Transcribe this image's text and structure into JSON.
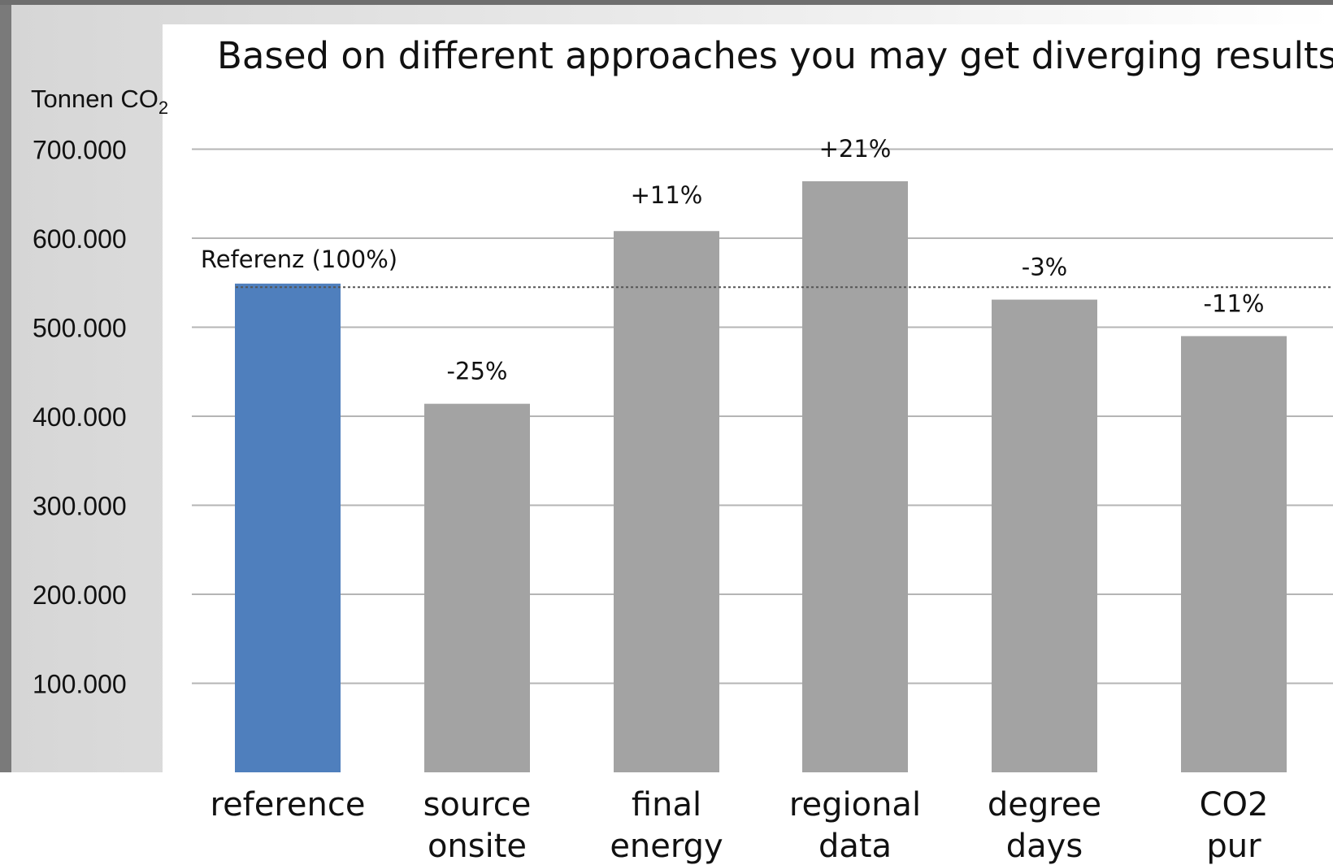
{
  "chart_data": {
    "type": "bar",
    "title": "Based on different approaches you may get diverging results",
    "ylabel": "Tonnen CO",
    "ylabel_subscript": "2",
    "ylim": [
      0,
      700000
    ],
    "yticks": [
      100000,
      200000,
      300000,
      400000,
      500000,
      600000,
      700000
    ],
    "ytick_labels": [
      "100.000",
      "200.000",
      "300.000",
      "400.000",
      "500.000",
      "600.000",
      "700.000"
    ],
    "grid": true,
    "categories": [
      [
        "reference"
      ],
      [
        "source",
        "onsite"
      ],
      [
        "final",
        "energy"
      ],
      [
        "regional",
        "data"
      ],
      [
        "degree",
        "days"
      ],
      [
        "CO2",
        "pur"
      ]
    ],
    "values": [
      549000,
      414000,
      608000,
      664000,
      531000,
      490000
    ],
    "data_labels": [
      "Referenz (100%)",
      "-25%",
      "+11%",
      "+21%",
      "-3%",
      "-11%"
    ],
    "reference_line": 545000,
    "colors": {
      "highlight": "#4f7fbd",
      "bar": "#a3a3a3",
      "grid": "#b5b5b5",
      "reference_line": "#555555"
    }
  }
}
